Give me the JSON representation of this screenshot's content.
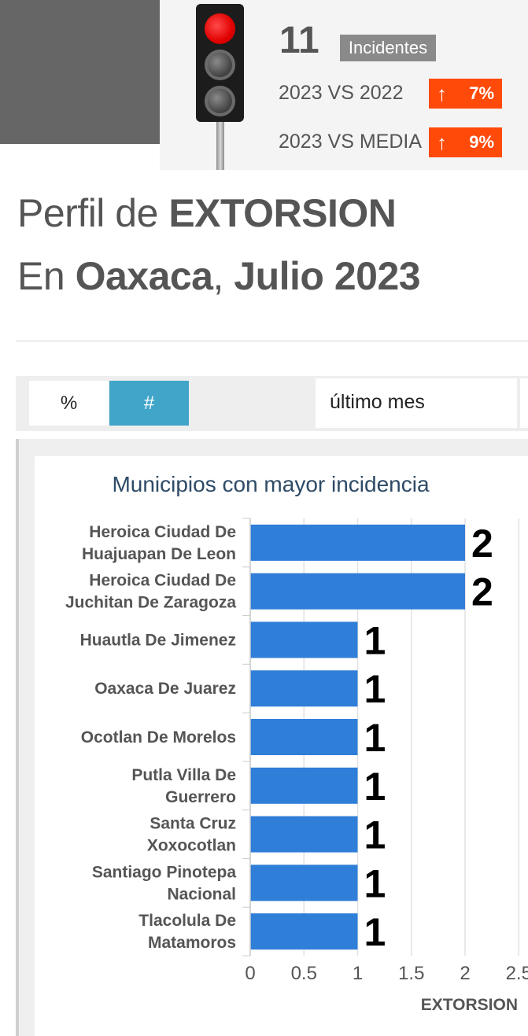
{
  "header": {
    "count": "11",
    "count_label": "Incidentes",
    "comparisons": [
      {
        "label": "2023 VS 2022",
        "arrow": "↑",
        "value": "7%"
      },
      {
        "label": "2023 VS MEDIA",
        "arrow": "↑",
        "value": "9%"
      }
    ],
    "colors": {
      "alert": "#ff4a0a",
      "light_active": "#ff0000"
    }
  },
  "title": {
    "line1_prefix": "Perfil de ",
    "line1_bold": "EXTORSION",
    "line2_prefix": "En ",
    "line2_bold1": "Oaxaca",
    "line2_sep": ", ",
    "line2_bold2": "Julio 2023"
  },
  "controls": {
    "percent_label": "%",
    "count_label": "#",
    "period": "último mes"
  },
  "chart_data": {
    "type": "bar",
    "orientation": "horizontal",
    "title": "Municipios con mayor incidencia",
    "xlabel": "EXTORSION",
    "xlim": [
      0,
      2.5
    ],
    "xticks": [
      "0",
      "0.5",
      "1",
      "1.5",
      "2",
      "2.5"
    ],
    "grid": true,
    "categories": [
      [
        "Heroica Ciudad De",
        "Huajuapan De Leon"
      ],
      [
        "Heroica Ciudad De",
        "Juchitan De Zaragoza"
      ],
      [
        "Huautla De Jimenez"
      ],
      [
        "Oaxaca De Juarez"
      ],
      [
        "Ocotlan De Morelos"
      ],
      [
        "Putla Villa De",
        "Guerrero"
      ],
      [
        "Santa Cruz",
        "Xoxocotlan"
      ],
      [
        "Santiago Pinotepa",
        "Nacional"
      ],
      [
        "Tlacolula De",
        "Matamoros"
      ]
    ],
    "values": [
      2,
      2,
      1,
      1,
      1,
      1,
      1,
      1,
      1
    ],
    "bar_color": "#2f7ed8"
  }
}
